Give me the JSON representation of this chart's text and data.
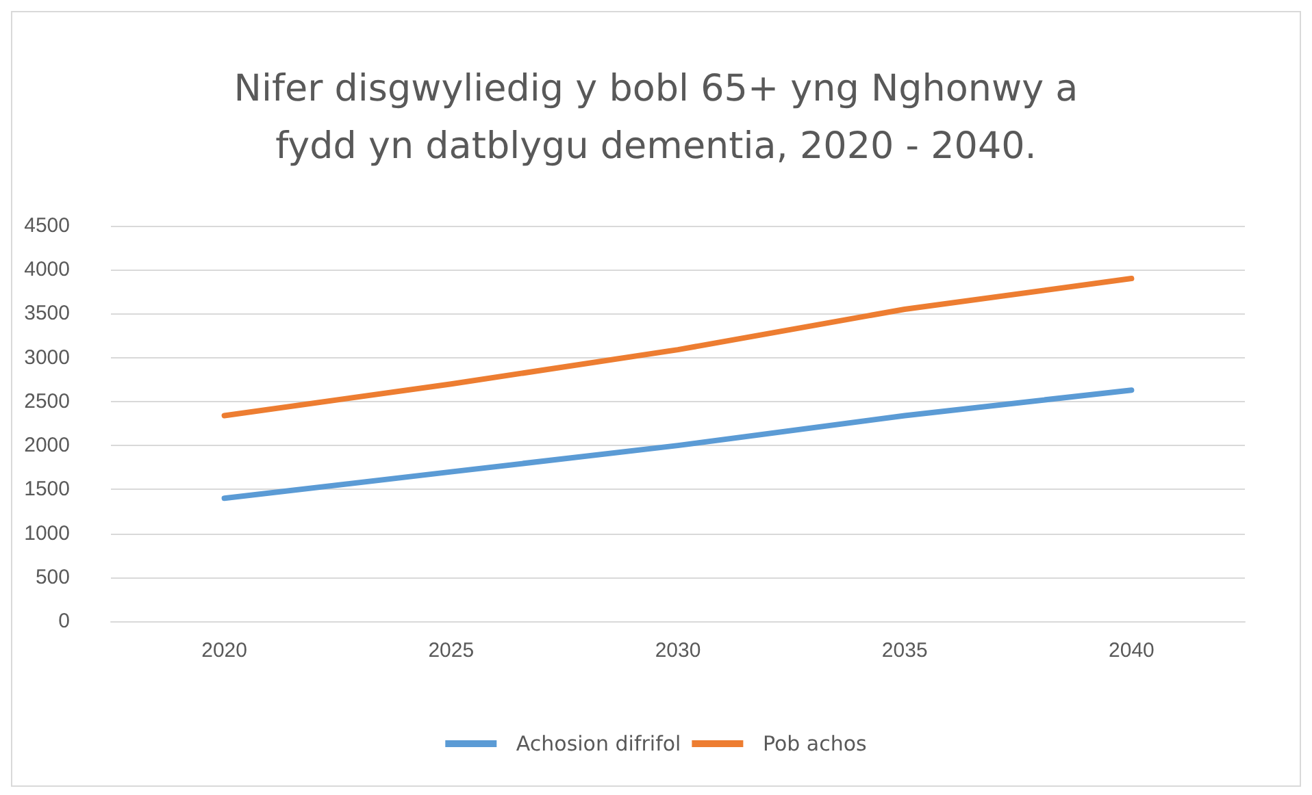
{
  "chart_data": {
    "type": "line",
    "title": "Nifer disgwyliedig y bobl 65+ yng Nghonwy a\nfydd yn datblygu dementia, 2020 - 2040.",
    "categories": [
      "2020",
      "2025",
      "2030",
      "2035",
      "2040"
    ],
    "series": [
      {
        "name": "Achosion difrifol",
        "color": "#5b9bd5",
        "values": [
          1400,
          1700,
          2000,
          2340,
          2630
        ]
      },
      {
        "name": "Pob achos",
        "color": "#ed7d31",
        "values": [
          2340,
          2700,
          3090,
          3550,
          3900
        ]
      }
    ],
    "ylim": [
      0,
      4500
    ],
    "yticks": [
      0,
      500,
      1000,
      1500,
      2000,
      2500,
      3000,
      3500,
      4000,
      4500
    ],
    "grid": "y",
    "legend": "bottom",
    "marker": "none",
    "line_style": "solid"
  }
}
